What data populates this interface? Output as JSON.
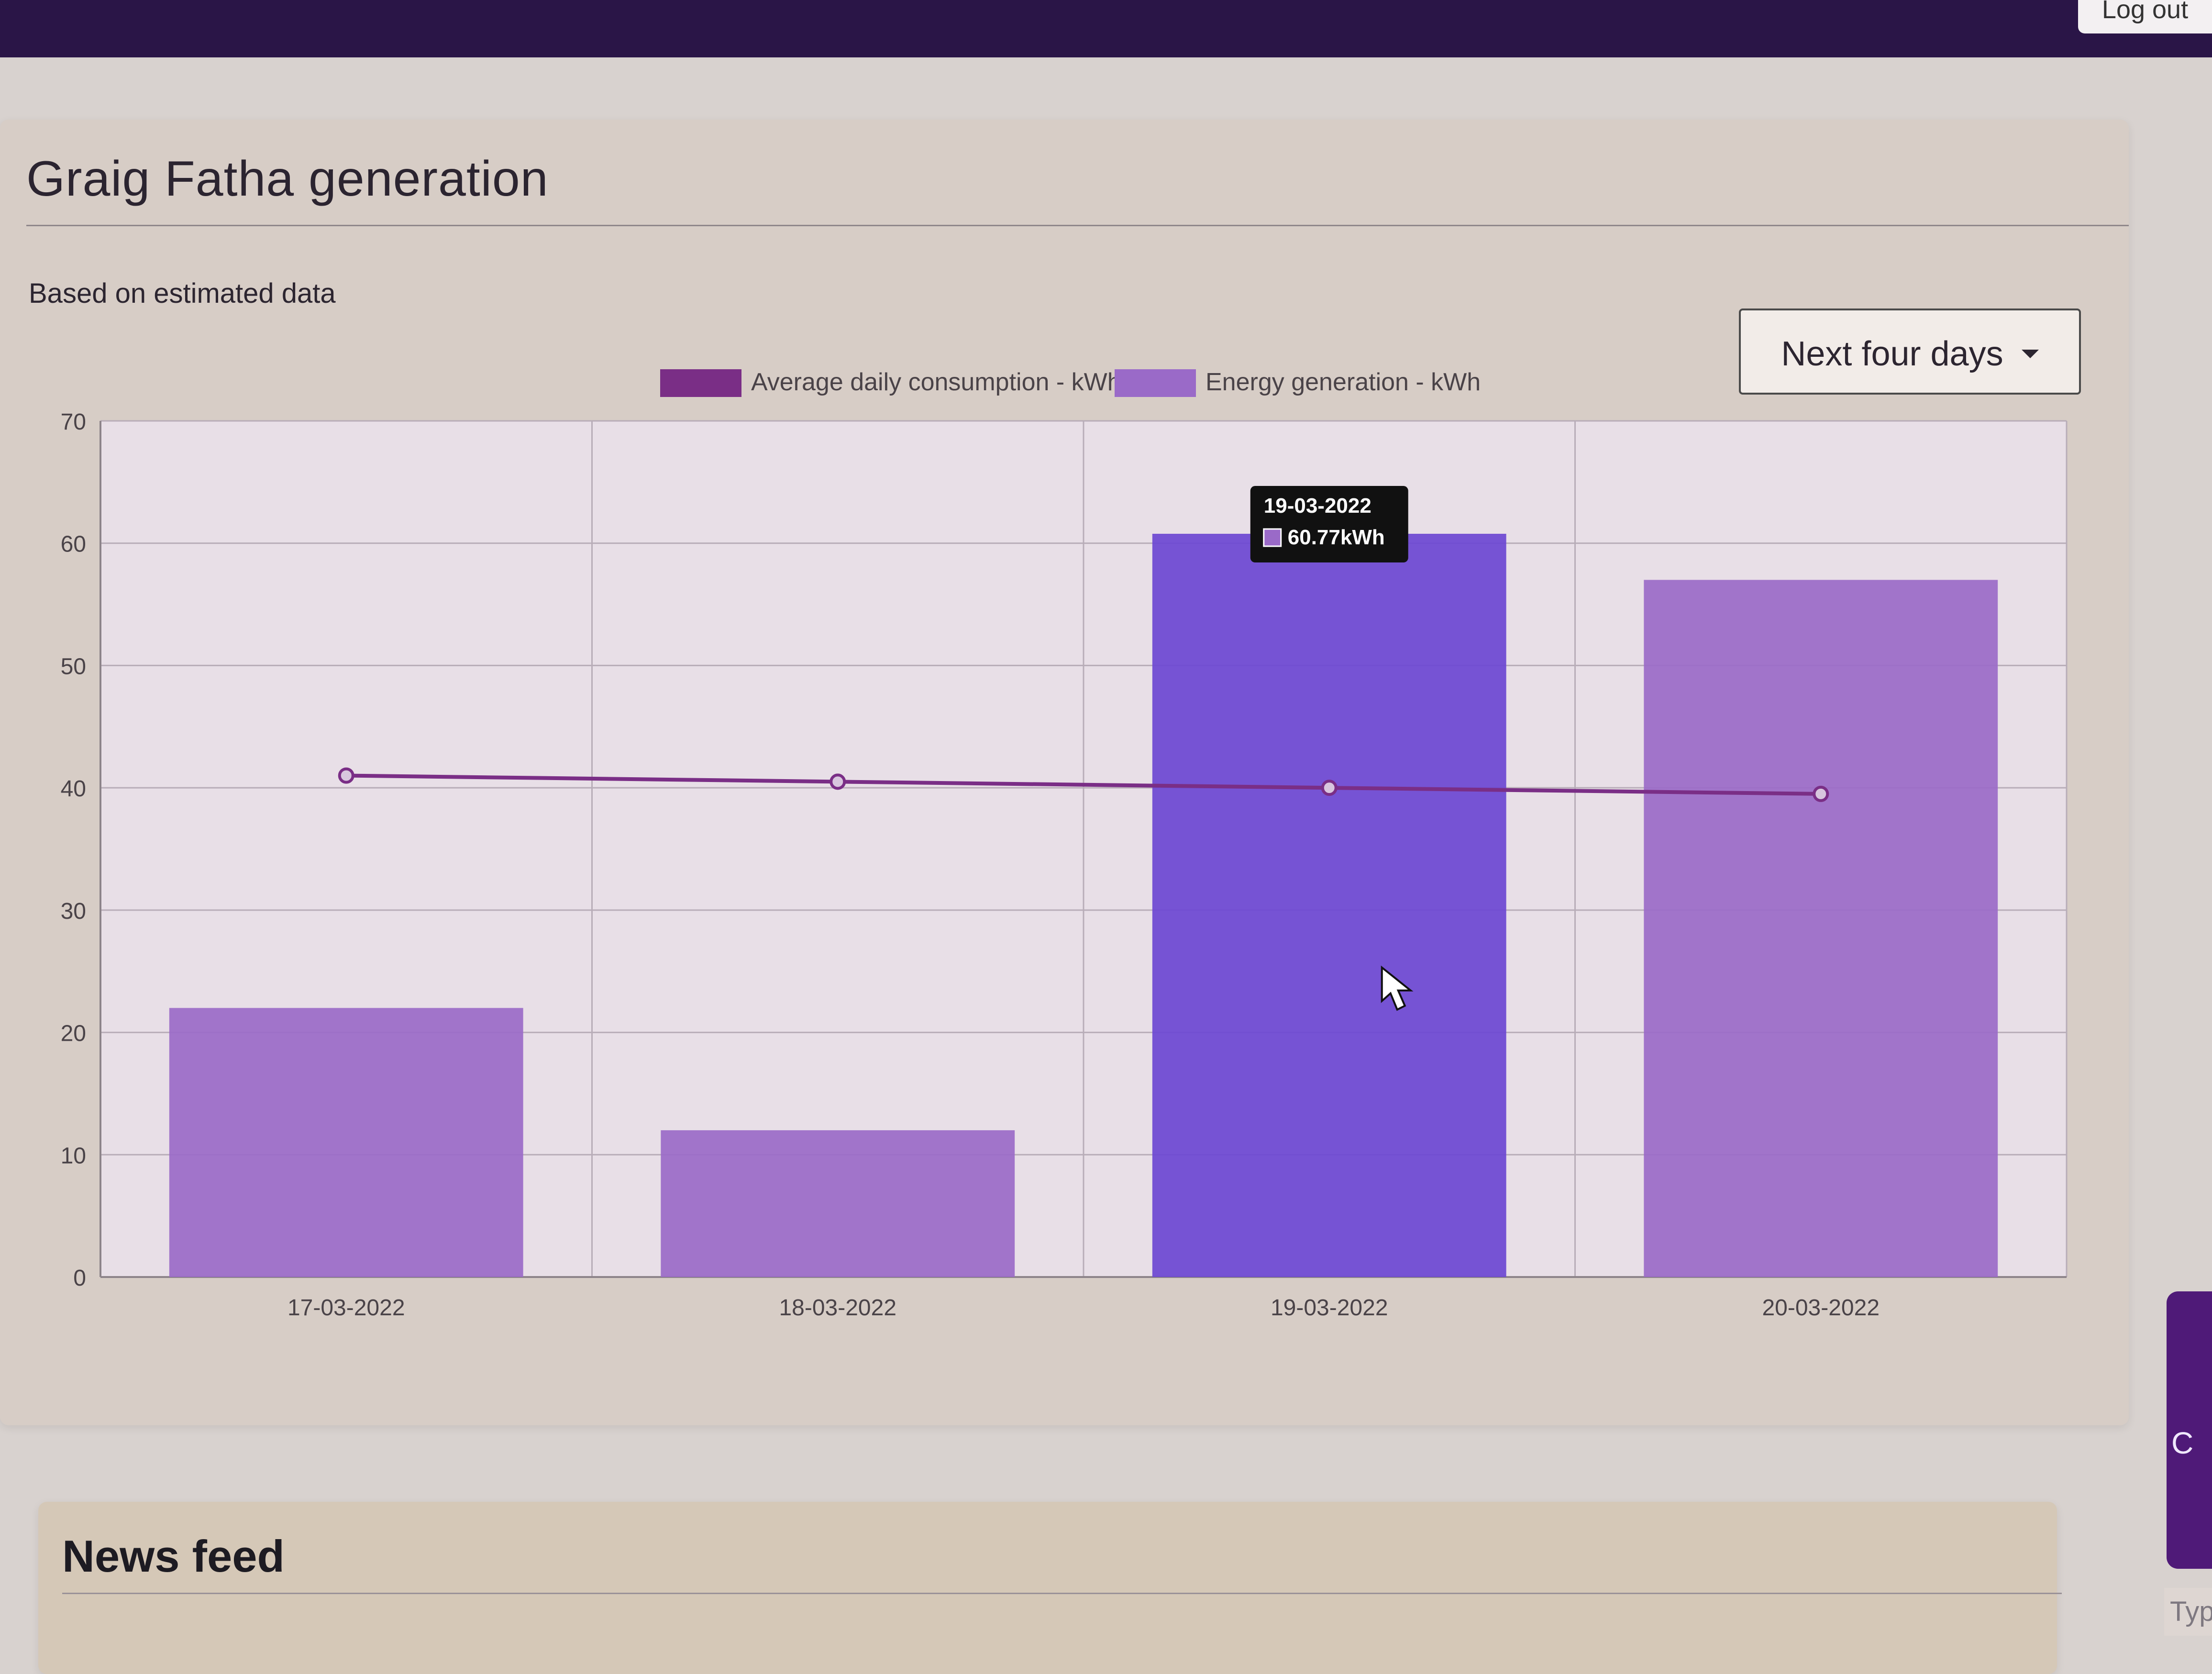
{
  "topbar": {
    "logout_label": "Log out"
  },
  "card": {
    "title": "Graig Fatha generation",
    "subtitle": "Based on estimated data",
    "range_label": "Next four days"
  },
  "news": {
    "title": "News feed"
  },
  "chat": {
    "button_letter": "C",
    "input_placeholder": "Type"
  },
  "colors": {
    "consumption": "#7a2e86",
    "generation": "#9a6ac8",
    "highlight": "#6b46d2"
  },
  "icons": {
    "dropdown": "chevron-down-icon",
    "cursor": "mouse-pointer-icon"
  },
  "chart_data": {
    "type": "bar",
    "categories": [
      "17-03-2022",
      "18-03-2022",
      "19-03-2022",
      "20-03-2022"
    ],
    "series": [
      {
        "name": "Average daily consumption - kWh",
        "type": "line",
        "values": [
          41,
          40.5,
          40,
          39.5
        ]
      },
      {
        "name": "Energy generation - kWh",
        "type": "bar",
        "values": [
          22,
          12,
          60.77,
          57
        ]
      }
    ],
    "ylim": [
      0,
      70
    ],
    "yticks": [
      0,
      10,
      20,
      30,
      40,
      50,
      60,
      70
    ],
    "tooltip": {
      "date": "19-03-2022",
      "value": "60.77kWh"
    },
    "legend": {
      "position": "top",
      "items": [
        "Average daily consumption - kWh",
        "Energy generation - kWh"
      ]
    },
    "grid": true
  }
}
